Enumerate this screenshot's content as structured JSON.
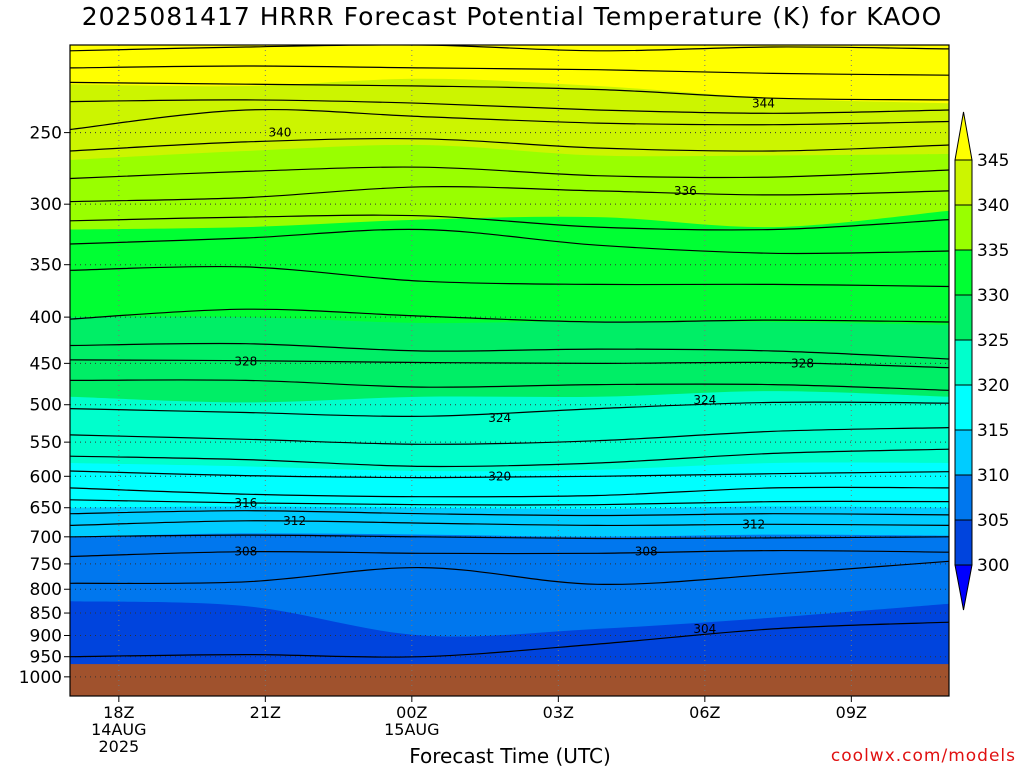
{
  "title": "2025081417 HRRR Forecast Potential Temperature (K) for KAOO",
  "credit": "coolwx.com/models",
  "chart_data": {
    "type": "heatmap",
    "title": "2025081417 HRRR Forecast Potential Temperature (K) for KAOO",
    "xlabel": "Forecast Time (UTC)",
    "ylabel": "",
    "x_tick_labels": [
      {
        "hour": 1,
        "lines": [
          "18Z",
          "14AUG",
          "2025"
        ]
      },
      {
        "hour": 4,
        "lines": [
          "21Z"
        ]
      },
      {
        "hour": 7,
        "lines": [
          "00Z",
          "15AUG"
        ]
      },
      {
        "hour": 10,
        "lines": [
          "03Z"
        ]
      },
      {
        "hour": 13,
        "lines": [
          "06Z"
        ]
      },
      {
        "hour": 16,
        "lines": [
          "09Z"
        ]
      }
    ],
    "x_range_hours": [
      0,
      18
    ],
    "y_pressure_ticks": [
      250,
      300,
      350,
      400,
      450,
      500,
      550,
      600,
      650,
      700,
      750,
      800,
      850,
      900,
      950,
      1000
    ],
    "y_scale": "log-pressure (hPa), top ~200, bottom ~1050",
    "colorbar_ticks": [
      345,
      340,
      335,
      330,
      325,
      320,
      315,
      310,
      305,
      300
    ],
    "colorbar_colors": [
      "#ffff00",
      "#ccf500",
      "#99ff00",
      "#00ff33",
      "#00ee66",
      "#00ffcc",
      "#00ffff",
      "#00ccff",
      "#0077ee",
      "#0044dd",
      "#0000ff"
    ],
    "surface_color": "#a0522d",
    "contour_interval_K": 2,
    "contour_labels": [
      {
        "value": "344",
        "hour": 14.2,
        "pressure": 232
      },
      {
        "value": "340",
        "hour": 4.3,
        "pressure": 250
      },
      {
        "value": "336",
        "hour": 12.6,
        "pressure": 290
      },
      {
        "value": "328",
        "hour": 3.6,
        "pressure": 448
      },
      {
        "value": "328",
        "hour": 15.0,
        "pressure": 450
      },
      {
        "value": "324",
        "hour": 8.8,
        "pressure": 517
      },
      {
        "value": "324",
        "hour": 13.0,
        "pressure": 494
      },
      {
        "value": "320",
        "hour": 8.8,
        "pressure": 600
      },
      {
        "value": "316",
        "hour": 3.6,
        "pressure": 642
      },
      {
        "value": "312",
        "hour": 4.6,
        "pressure": 672
      },
      {
        "value": "312",
        "hour": 14.0,
        "pressure": 678
      },
      {
        "value": "308",
        "hour": 3.6,
        "pressure": 727
      },
      {
        "value": "308",
        "hour": 11.8,
        "pressure": 727
      },
      {
        "value": "304",
        "hour": 13.0,
        "pressure": 885
      }
    ],
    "isentropes": [
      {
        "theta": 346,
        "pressure": [
          203,
          201,
          200,
          203,
          201,
          202
        ]
      },
      {
        "theta": 345,
        "pressure": [
          212,
          211,
          212,
          213,
          215,
          216
        ]
      },
      {
        "theta": 344,
        "pressure": [
          220,
          221,
          222,
          224,
          229,
          230
        ]
      },
      {
        "theta": 343,
        "pressure": [
          231,
          230,
          232,
          236,
          238,
          236
        ]
      },
      {
        "theta": 342,
        "pressure": [
          248,
          236,
          240,
          244,
          245,
          243
        ]
      },
      {
        "theta": 340,
        "pressure": [
          262,
          256,
          254,
          260,
          262,
          258
        ]
      },
      {
        "theta": 338,
        "pressure": [
          281,
          276,
          273,
          279,
          280,
          275
        ]
      },
      {
        "theta": 336,
        "pressure": [
          298,
          295,
          287,
          290,
          293,
          290
        ]
      },
      {
        "theta": 334,
        "pressure": [
          313,
          310,
          309,
          318,
          320,
          312
        ]
      },
      {
        "theta": 332,
        "pressure": [
          332,
          327,
          320,
          333,
          340,
          338
        ]
      },
      {
        "theta": 331,
        "pressure": [
          355,
          352,
          365,
          368,
          368,
          370
        ]
      },
      {
        "theta": 330,
        "pressure": [
          402,
          392,
          399,
          405,
          403,
          405
        ]
      },
      {
        "theta": 329,
        "pressure": [
          430,
          428,
          436,
          434,
          436,
          445
        ]
      },
      {
        "theta": 328,
        "pressure": [
          446,
          447,
          449,
          450,
          449,
          455
        ]
      },
      {
        "theta": 326,
        "pressure": [
          470,
          470,
          478,
          475,
          475,
          482
        ]
      },
      {
        "theta": 324,
        "pressure": [
          505,
          510,
          515,
          505,
          497,
          498
        ]
      },
      {
        "theta": 322,
        "pressure": [
          540,
          546,
          553,
          548,
          535,
          530
        ]
      },
      {
        "theta": 321,
        "pressure": [
          570,
          575,
          585,
          580,
          566,
          560
        ]
      },
      {
        "theta": 320,
        "pressure": [
          592,
          599,
          602,
          600,
          596,
          593
        ]
      },
      {
        "theta": 318,
        "pressure": [
          618,
          628,
          632,
          630,
          618,
          618
        ]
      },
      {
        "theta": 316,
        "pressure": [
          637,
          642,
          645,
          645,
          640,
          640
        ]
      },
      {
        "theta": 314,
        "pressure": [
          660,
          655,
          660,
          663,
          660,
          662
        ]
      },
      {
        "theta": 312,
        "pressure": [
          680,
          672,
          676,
          680,
          678,
          680
        ]
      },
      {
        "theta": 310,
        "pressure": [
          700,
          697,
          700,
          703,
          702,
          700
        ]
      },
      {
        "theta": 308,
        "pressure": [
          736,
          727,
          730,
          730,
          725,
          728
        ]
      },
      {
        "theta": 306,
        "pressure": [
          788,
          785,
          757,
          790,
          770,
          745
        ]
      },
      {
        "theta": 304,
        "pressure": [
          950,
          945,
          950,
          920,
          885,
          870
        ]
      }
    ],
    "fill_bands": [
      {
        "color": "#ffff00",
        "pressure": [
          200,
          200,
          200,
          200,
          200,
          200
        ]
      },
      {
        "color": "#ccf500",
        "pressure": [
          221,
          222,
          218,
          222,
          229,
          232
        ]
      },
      {
        "color": "#99ff00",
        "pressure": [
          268,
          262,
          258,
          265,
          265,
          264
        ]
      },
      {
        "color": "#00ff33",
        "pressure": [
          320,
          318,
          312,
          310,
          318,
          305
        ]
      },
      {
        "color": "#00ee66",
        "pressure": [
          400,
          400,
          406,
          404,
          405,
          408
        ]
      },
      {
        "color": "#00ffcc",
        "pressure": [
          490,
          497,
          490,
          490,
          483,
          490
        ]
      },
      {
        "color": "#00ffff",
        "pressure": [
          580,
          585,
          592,
          590,
          580,
          580
        ]
      },
      {
        "color": "#00ccff",
        "pressure": [
          650,
          648,
          650,
          652,
          648,
          650
        ]
      },
      {
        "color": "#0077ee",
        "pressure": [
          700,
          694,
          696,
          700,
          696,
          698
        ]
      },
      {
        "color": "#0044dd",
        "pressure": [
          825,
          835,
          900,
          885,
          860,
          830
        ]
      },
      {
        "color": "#0000ff",
        "pressure": [
          1000,
          1000,
          1000,
          1000,
          1000,
          990
        ]
      }
    ],
    "surface_pressure": 968
  },
  "x_axis_label": "Forecast Time (UTC)"
}
